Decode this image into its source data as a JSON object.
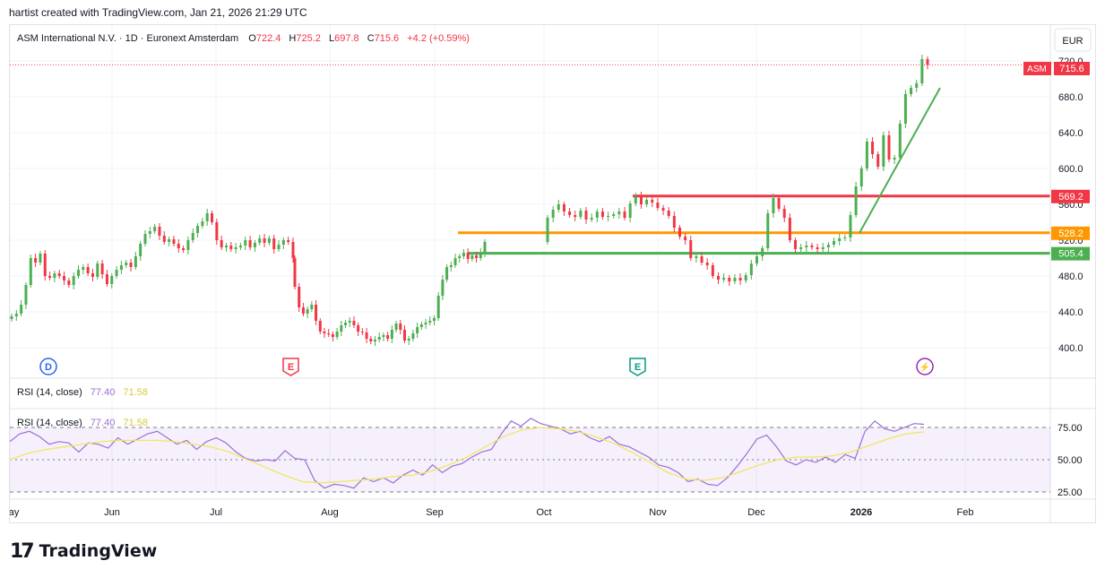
{
  "header": {
    "credit": "hartist created with TradingView.com, Jan 21, 2026 21:29 UTC"
  },
  "legend": {
    "symbol": "ASM International N.V. · 1D · Euronext Amsterdam",
    "o_label": "O",
    "o_value": "722.4",
    "h_label": "H",
    "h_value": "725.2",
    "l_label": "L",
    "l_value": "697.8",
    "c_label": "C",
    "c_value": "715.6",
    "change": "+4.2 (+0.59%)"
  },
  "currency": "EUR",
  "price_tag": {
    "ticker": "ASM",
    "price": "715.6"
  },
  "rsi": {
    "label": "RSI (14, close)",
    "value": "77.40",
    "ma_value": "71.58",
    "levels": [
      "75.00",
      "50.00",
      "25.00"
    ]
  },
  "event_badges": {
    "dividend": "D",
    "earnings": "E",
    "earnings2": "E",
    "flash": "⚡"
  },
  "colors": {
    "up": "#4caf50",
    "down": "#f23645",
    "rsi_line": "#9b6fd6",
    "rsi_ma": "#f0e65a",
    "orange": "#ff9800",
    "green_line": "#4caf50",
    "red_line": "#f23645",
    "tag_gray": "#e8e8e8"
  },
  "footer": {
    "brand": "TradingView"
  },
  "chart_data": {
    "type": "candlestick",
    "y_ticks": [
      "400.0",
      "440.0",
      "480.0",
      "520.0",
      "560.0",
      "600.0",
      "640.0",
      "680.0",
      "720.0"
    ],
    "x_labels": [
      "May",
      "Jun",
      "Jul",
      "Aug",
      "Sep",
      "Oct",
      "Nov",
      "Dec",
      "2026",
      "Feb"
    ],
    "ylim": [
      385,
      730
    ],
    "horizontal_levels": [
      {
        "value": 569.2,
        "label": "569.2",
        "color": "#f23645",
        "from": "Oct"
      },
      {
        "value": 528.2,
        "label": "528.2",
        "color": "#ff9800",
        "from": "Sep"
      },
      {
        "value": 505.4,
        "label": "505.4",
        "color": "#4caf50",
        "from": "Sep"
      }
    ],
    "trendline": {
      "from": {
        "date": "2026-01-01",
        "price": 528
      },
      "to": {
        "date": "2026-01-24",
        "price": 690
      },
      "color": "#4caf50"
    },
    "last_price": 715.6,
    "closes": [
      [
        435,
        438,
        448,
        470,
        500,
        495,
        505,
        480,
        478,
        483,
        480,
        475,
        470,
        480,
        487,
        490,
        483,
        479,
        494,
        482,
        471,
        480,
        487,
        492,
        495,
        490,
        502,
        516,
        527,
        530,
        535,
        525,
        518,
        521,
        516,
        511,
        509,
        520,
        528,
        536,
        541,
        550,
        540,
        520,
        512,
        514,
        510,
        512,
        514,
        520,
        512,
        517,
        522,
        517,
        522,
        510,
        515,
        520,
        518,
        500
      ],
      [
        468,
        445,
        438,
        443,
        448,
        430,
        418,
        416,
        415,
        412,
        418,
        425,
        428,
        430,
        425,
        418,
        417,
        410,
        407,
        409,
        412,
        414,
        410,
        420,
        427,
        420,
        408,
        410,
        416,
        423,
        426,
        428,
        430,
        433,
        458,
        476,
        490,
        492,
        500,
        502,
        506,
        499,
        503,
        500,
        506,
        518
      ],
      [
        545,
        554,
        560,
        552,
        548,
        546,
        553,
        543,
        545,
        552,
        546,
        547,
        549,
        552,
        545,
        561,
        569,
        560,
        565,
        562,
        556,
        553,
        547,
        534,
        524,
        520,
        500,
        502,
        495,
        492,
        480,
        476,
        478,
        474,
        478,
        475,
        481,
        494,
        502,
        511,
        550,
        567,
        555,
        545,
        520,
        510,
        512,
        514,
        512,
        510,
        512,
        515,
        519,
        522,
        523,
        548,
        580,
        600,
        630,
        616,
        602,
        637,
        610,
        612,
        650,
        683,
        690,
        695,
        722,
        715.6
      ]
    ],
    "rsi_series": [
      64,
      70,
      72,
      68,
      62,
      64,
      63,
      56,
      63,
      62,
      59,
      67,
      62,
      66,
      70,
      72,
      67,
      62,
      65,
      58,
      64,
      67,
      63,
      56,
      51,
      49,
      50,
      49,
      57,
      51,
      50,
      34,
      28,
      31,
      30,
      28,
      36,
      33,
      36,
      32,
      38,
      42,
      38,
      46,
      40,
      45,
      47,
      52,
      56,
      58,
      70,
      80,
      76,
      82,
      78,
      76,
      74,
      70,
      72,
      67,
      64,
      68,
      62,
      60,
      56,
      52,
      46,
      44,
      40,
      33,
      35,
      31,
      30,
      36,
      45,
      55,
      66,
      69,
      60,
      49,
      46,
      50,
      48,
      52,
      48,
      54,
      51,
      72,
      80,
      74,
      72,
      75,
      78,
      77.4
    ],
    "rsi_ma_series": [
      50,
      55,
      58,
      60,
      62,
      64,
      65,
      65,
      65,
      64,
      62,
      60,
      56,
      50,
      44,
      38,
      33,
      32,
      33,
      34,
      35,
      37,
      38,
      41,
      46,
      52,
      60,
      68,
      73,
      75,
      74,
      72,
      68,
      63,
      56,
      48,
      40,
      35,
      34,
      36,
      41,
      46,
      50,
      52,
      52,
      53,
      56,
      61,
      66,
      70,
      71.58
    ]
  }
}
